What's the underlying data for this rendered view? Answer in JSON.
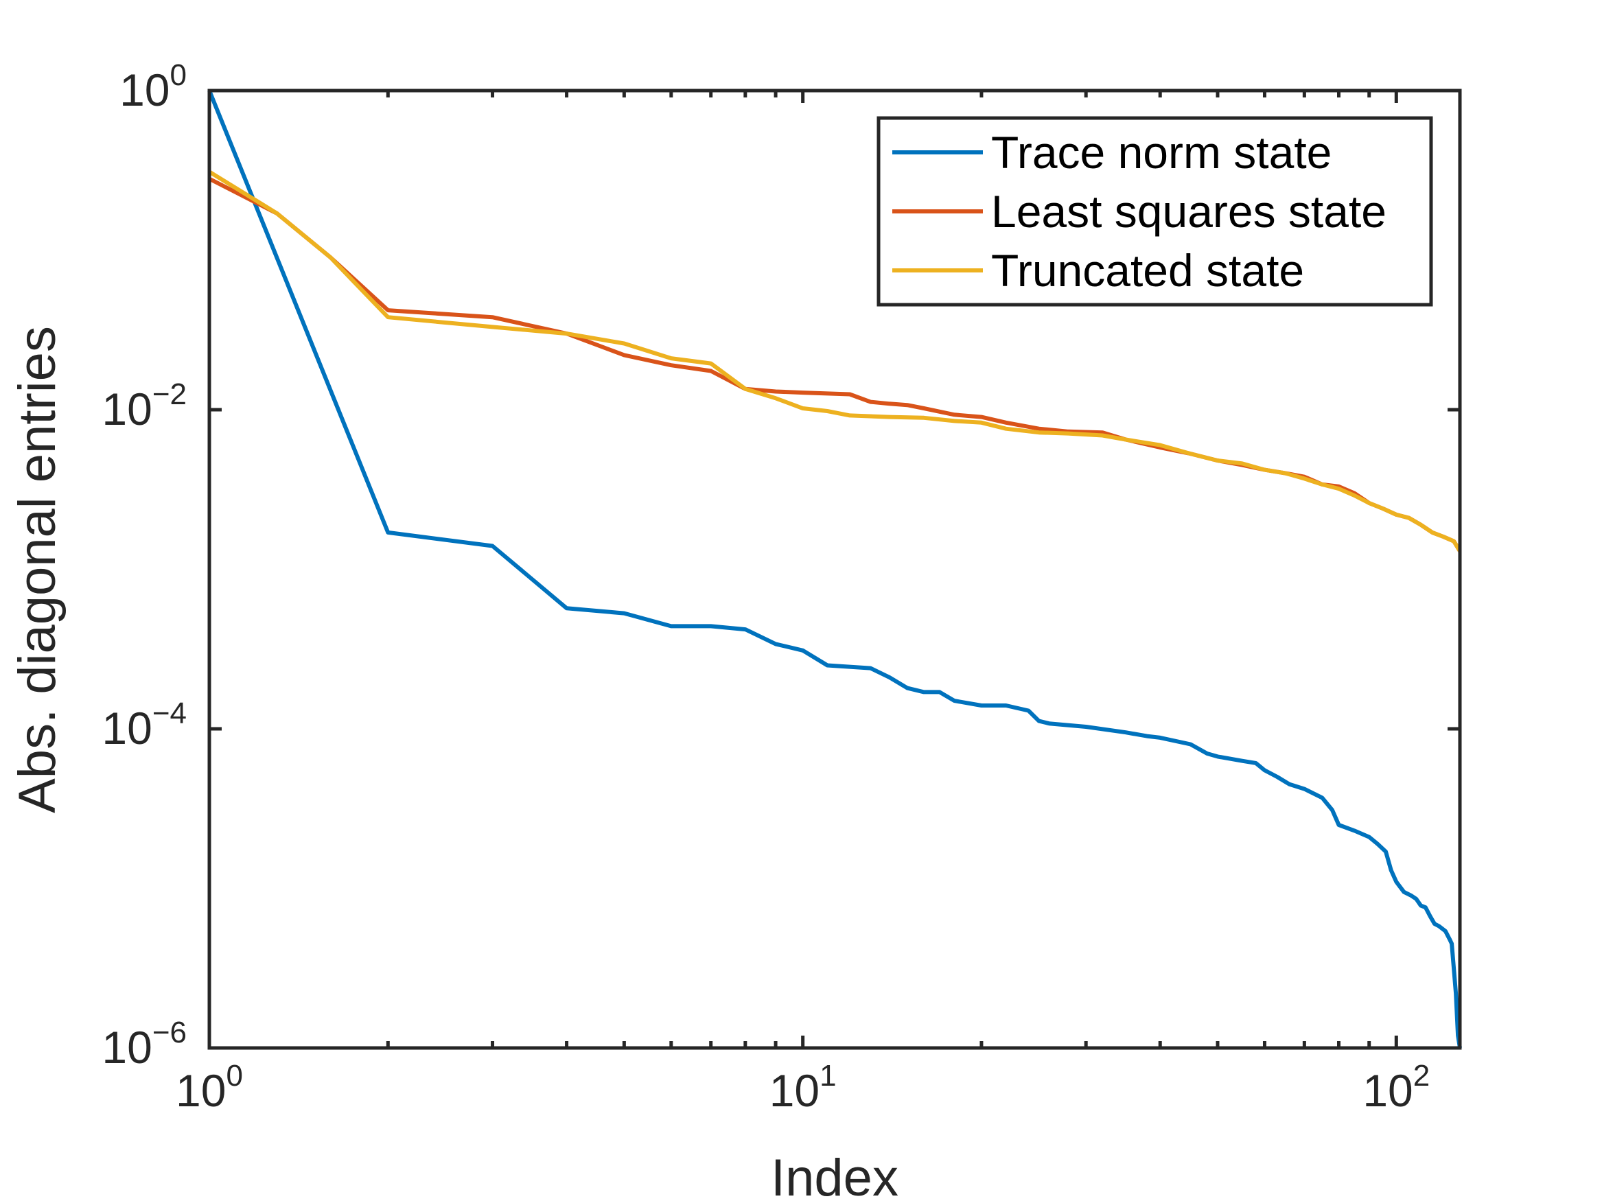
{
  "chart_data": {
    "type": "line",
    "title": "",
    "xlabel": "Index",
    "ylabel": "Abs. diagonal entries",
    "xscale": "log",
    "yscale": "log",
    "xlim": [
      1,
      128
    ],
    "ylim": [
      1e-06,
      1
    ],
    "xticks": [
      {
        "base": "10",
        "exp": "0",
        "value": 1
      },
      {
        "base": "10",
        "exp": "1",
        "value": 10
      },
      {
        "base": "10",
        "exp": "2",
        "value": 100
      }
    ],
    "yticks": [
      {
        "base": "10",
        "exp": "0",
        "value": 1
      },
      {
        "base": "10",
        "exp": "−2",
        "value": 0.01
      },
      {
        "base": "10",
        "exp": "−4",
        "value": 0.0001
      },
      {
        "base": "10",
        "exp": "−6",
        "value": 1e-06
      }
    ],
    "legend_position": "top-right",
    "series": [
      {
        "name": "Trace norm state",
        "color": "#0072BD",
        "points": [
          [
            1,
            1
          ],
          [
            2,
            0.0017
          ],
          [
            3,
            0.0014
          ],
          [
            4,
            0.00057
          ],
          [
            5,
            0.00053
          ],
          [
            6,
            0.00044
          ],
          [
            7,
            0.00044
          ],
          [
            8,
            0.00042
          ],
          [
            9,
            0.00034
          ],
          [
            10,
            0.00031
          ],
          [
            11,
            0.00025
          ],
          [
            13,
            0.00024
          ],
          [
            14,
            0.00021
          ],
          [
            15,
            0.00018
          ],
          [
            16,
            0.00017
          ],
          [
            17,
            0.00017
          ],
          [
            18,
            0.00015
          ],
          [
            20,
            0.00014
          ],
          [
            22,
            0.00014
          ],
          [
            24,
            0.00013
          ],
          [
            25,
            0.000112
          ],
          [
            26,
            0.000108
          ],
          [
            30,
            0.000103
          ],
          [
            35,
            9.5e-05
          ],
          [
            38,
            9e-05
          ],
          [
            40,
            8.8e-05
          ],
          [
            45,
            8e-05
          ],
          [
            48,
            7e-05
          ],
          [
            50,
            6.7e-05
          ],
          [
            55,
            6.3e-05
          ],
          [
            58,
            6.1e-05
          ],
          [
            60,
            5.5e-05
          ],
          [
            63,
            5e-05
          ],
          [
            66,
            4.5e-05
          ],
          [
            70,
            4.2e-05
          ],
          [
            75,
            3.7e-05
          ],
          [
            78,
            3.1e-05
          ],
          [
            80,
            2.5e-05
          ],
          [
            85,
            2.3e-05
          ],
          [
            90,
            2.1e-05
          ],
          [
            93,
            1.9e-05
          ],
          [
            96,
            1.7e-05
          ],
          [
            98,
            1.3e-05
          ],
          [
            100,
            1.1e-05
          ],
          [
            103,
            9.5e-06
          ],
          [
            106,
            9e-06
          ],
          [
            108,
            8.6e-06
          ],
          [
            110,
            7.8e-06
          ],
          [
            112,
            7.6e-06
          ],
          [
            114,
            6.7e-06
          ],
          [
            116,
            6e-06
          ],
          [
            118,
            5.8e-06
          ],
          [
            121,
            5.4e-06
          ],
          [
            123,
            4.8e-06
          ],
          [
            124,
            4.5e-06
          ],
          [
            126,
            2.2e-06
          ],
          [
            127,
            1.2e-06
          ],
          [
            128,
            1e-06
          ]
        ]
      },
      {
        "name": "Least squares state",
        "color": "#D95319",
        "points": [
          [
            1,
            0.28
          ],
          [
            1.3,
            0.17
          ],
          [
            1.6,
            0.09
          ],
          [
            2,
            0.042
          ],
          [
            3,
            0.038
          ],
          [
            4,
            0.03
          ],
          [
            5,
            0.022
          ],
          [
            6,
            0.019
          ],
          [
            7,
            0.0175
          ],
          [
            8,
            0.0135
          ],
          [
            9,
            0.013
          ],
          [
            10,
            0.0128
          ],
          [
            12,
            0.0125
          ],
          [
            13,
            0.0112
          ],
          [
            14,
            0.0109
          ],
          [
            15,
            0.0107
          ],
          [
            16,
            0.0102
          ],
          [
            18,
            0.0093
          ],
          [
            20,
            0.009
          ],
          [
            22,
            0.0083
          ],
          [
            25,
            0.0076
          ],
          [
            28,
            0.0073
          ],
          [
            32,
            0.0072
          ],
          [
            35,
            0.0065
          ],
          [
            40,
            0.0058
          ],
          [
            45,
            0.0053
          ],
          [
            50,
            0.0048
          ],
          [
            55,
            0.0045
          ],
          [
            60,
            0.0042
          ],
          [
            65,
            0.004
          ],
          [
            70,
            0.0038
          ],
          [
            75,
            0.0034
          ],
          [
            80,
            0.0033
          ],
          [
            85,
            0.003
          ],
          [
            90,
            0.0026
          ],
          [
            95,
            0.0024
          ],
          [
            100,
            0.0022
          ],
          [
            105,
            0.0021
          ],
          [
            110,
            0.0019
          ],
          [
            115,
            0.0017
          ],
          [
            120,
            0.0016
          ],
          [
            125,
            0.0015
          ],
          [
            128,
            0.0013
          ]
        ]
      },
      {
        "name": "Truncated state",
        "color": "#EDB120",
        "points": [
          [
            1,
            0.31
          ],
          [
            1.3,
            0.17
          ],
          [
            1.6,
            0.09
          ],
          [
            2,
            0.038
          ],
          [
            3,
            0.033
          ],
          [
            4,
            0.03
          ],
          [
            5,
            0.026
          ],
          [
            6,
            0.021
          ],
          [
            7,
            0.0195
          ],
          [
            8,
            0.0135
          ],
          [
            9,
            0.0118
          ],
          [
            10,
            0.0102
          ],
          [
            11,
            0.0098
          ],
          [
            12,
            0.0092
          ],
          [
            14,
            0.009
          ],
          [
            16,
            0.0089
          ],
          [
            18,
            0.0085
          ],
          [
            20,
            0.0083
          ],
          [
            22,
            0.0076
          ],
          [
            25,
            0.0072
          ],
          [
            28,
            0.0071
          ],
          [
            32,
            0.0069
          ],
          [
            35,
            0.0065
          ],
          [
            40,
            0.006
          ],
          [
            45,
            0.0053
          ],
          [
            50,
            0.0048
          ],
          [
            55,
            0.0046
          ],
          [
            60,
            0.0042
          ],
          [
            65,
            0.004
          ],
          [
            70,
            0.0037
          ],
          [
            75,
            0.0034
          ],
          [
            80,
            0.0032
          ],
          [
            85,
            0.0029
          ],
          [
            90,
            0.0026
          ],
          [
            95,
            0.0024
          ],
          [
            100,
            0.0022
          ],
          [
            105,
            0.0021
          ],
          [
            110,
            0.0019
          ],
          [
            115,
            0.0017
          ],
          [
            120,
            0.0016
          ],
          [
            125,
            0.0015
          ],
          [
            128,
            0.0013
          ]
        ]
      }
    ]
  }
}
